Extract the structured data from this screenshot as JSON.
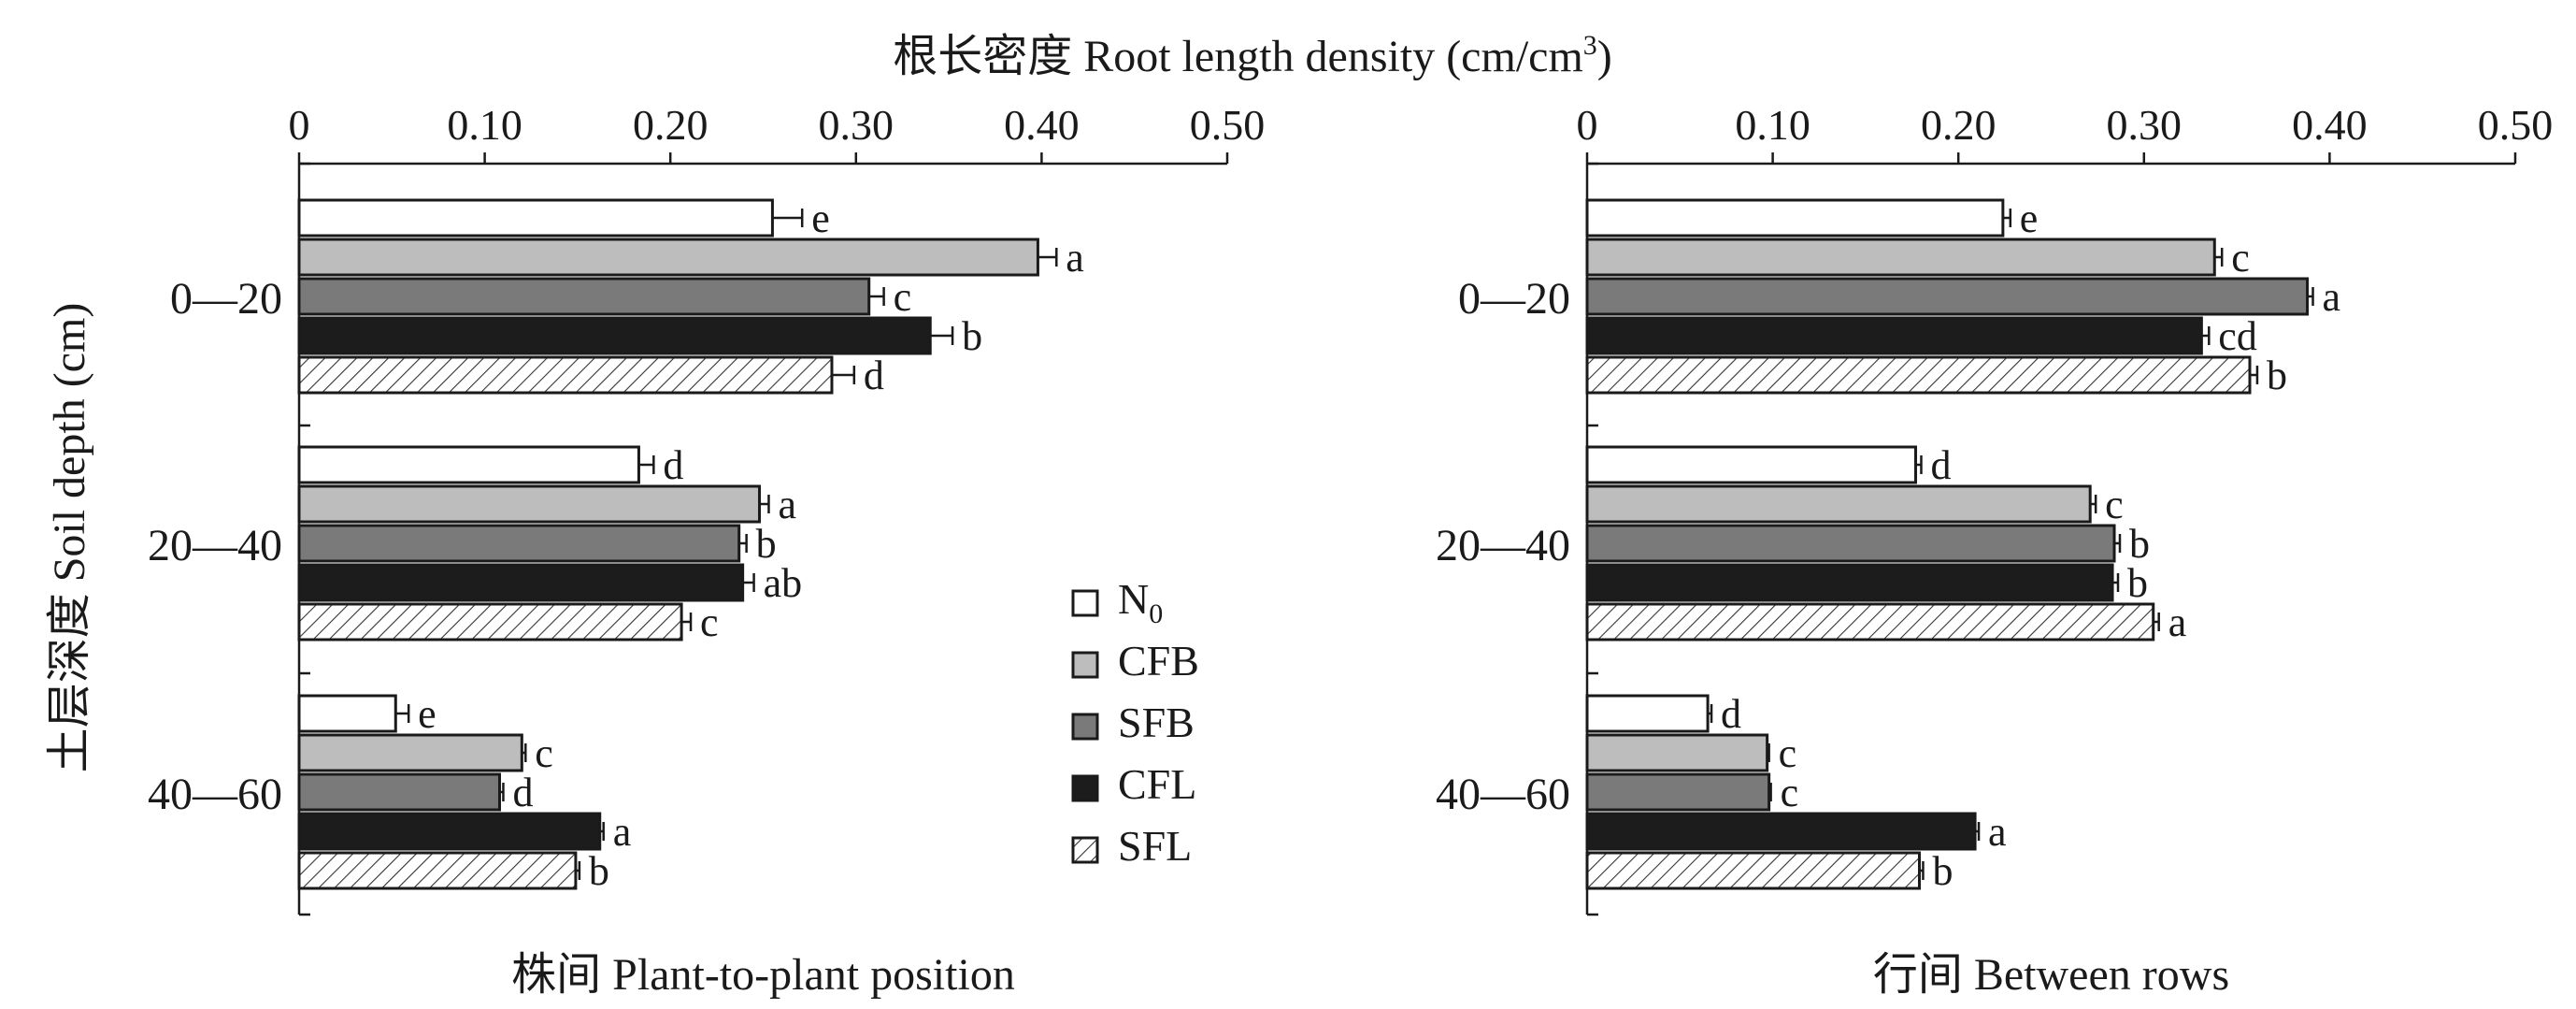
{
  "figure": {
    "x_title": "根长密度 Root length density (cm/cm",
    "x_title_sup": "3",
    "x_title_close": ")",
    "y_title": "土层深度 Soil depth (cm)"
  },
  "legend": [
    {
      "label": "N",
      "sub": "0",
      "fill": "#ffffff",
      "pattern": false
    },
    {
      "label": "CFB",
      "sub": "",
      "fill": "#bdbdbd",
      "pattern": false
    },
    {
      "label": "SFB",
      "sub": "",
      "fill": "#7a7a7a",
      "pattern": false
    },
    {
      "label": "CFL",
      "sub": "",
      "fill": "#1c1c1c",
      "pattern": false
    },
    {
      "label": "SFL",
      "sub": "",
      "fill": "#ffffff",
      "pattern": true
    }
  ],
  "chart_data": [
    {
      "type": "bar",
      "orientation": "horizontal",
      "panel_title": "株间 Plant-to-plant position",
      "categories": [
        "0—20",
        "20—40",
        "40—60"
      ],
      "xlim": [
        0,
        0.5
      ],
      "ticks": [
        "0",
        "0.10",
        "0.20",
        "0.30",
        "0.40",
        "0.50"
      ],
      "series": [
        {
          "name": "N0",
          "values": [
            0.255,
            0.183,
            0.052
          ],
          "errors": [
            0.016,
            0.008,
            0.007
          ],
          "letters": [
            "e",
            "d",
            "e"
          ]
        },
        {
          "name": "CFB",
          "values": [
            0.398,
            0.248,
            0.12
          ],
          "errors": [
            0.01,
            0.005,
            0.002
          ],
          "letters": [
            "a",
            "a",
            "c"
          ]
        },
        {
          "name": "SFB",
          "values": [
            0.307,
            0.237,
            0.108
          ],
          "errors": [
            0.008,
            0.004,
            0.002
          ],
          "letters": [
            "c",
            "b",
            "d"
          ]
        },
        {
          "name": "CFL",
          "values": [
            0.34,
            0.239,
            0.162
          ],
          "errors": [
            0.012,
            0.006,
            0.002
          ],
          "letters": [
            "b",
            "ab",
            "a"
          ]
        },
        {
          "name": "SFL",
          "values": [
            0.287,
            0.206,
            0.149
          ],
          "errors": [
            0.012,
            0.005,
            0.002
          ],
          "letters": [
            "d",
            "c",
            "b"
          ]
        }
      ]
    },
    {
      "type": "bar",
      "orientation": "horizontal",
      "panel_title": "行间 Between rows",
      "categories": [
        "0—20",
        "20—40",
        "40—60"
      ],
      "xlim": [
        0,
        0.5
      ],
      "ticks": [
        "0",
        "0.10",
        "0.20",
        "0.30",
        "0.40",
        "0.50"
      ],
      "series": [
        {
          "name": "N0",
          "values": [
            0.224,
            0.177,
            0.065
          ],
          "errors": [
            0.004,
            0.003,
            0.002
          ],
          "letters": [
            "e",
            "d",
            "d"
          ]
        },
        {
          "name": "CFB",
          "values": [
            0.338,
            0.271,
            0.097
          ],
          "errors": [
            0.004,
            0.003,
            0.001
          ],
          "letters": [
            "c",
            "c",
            "c"
          ]
        },
        {
          "name": "SFB",
          "values": [
            0.388,
            0.284,
            0.098
          ],
          "errors": [
            0.003,
            0.003,
            0.001
          ],
          "letters": [
            "a",
            "b",
            "c"
          ]
        },
        {
          "name": "CFL",
          "values": [
            0.331,
            0.283,
            0.209
          ],
          "errors": [
            0.004,
            0.003,
            0.002
          ],
          "letters": [
            "cd",
            "b",
            "a"
          ]
        },
        {
          "name": "SFL",
          "values": [
            0.357,
            0.305,
            0.179
          ],
          "errors": [
            0.004,
            0.003,
            0.002
          ],
          "letters": [
            "b",
            "a",
            "b"
          ]
        }
      ]
    }
  ]
}
